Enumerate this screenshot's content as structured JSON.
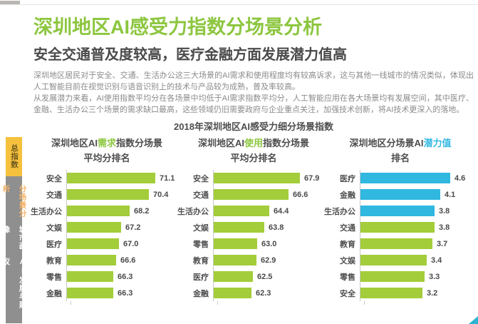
{
  "page": {
    "title": "深圳地区AI感受力指数分场景分析",
    "subtitle": "安全交通普及度较高，医疗金融方面发展潜力值高",
    "para1": "深圳地区居民对于安全、交通、生活办公这三大场景的AI需求和使用程度均有较高诉求，这与其他一线城市的情况类似，体现出人工智能目前在视觉识别与语音识别上的技术与产品较为成熟，普及率较高。",
    "para2": "从发展潜力来看，AI使用指数平均分在各场景中均低于AI需求指数平均分，人工智能应用在各大场景均有发展空间，其中医疗、金融、生活办公三个场景的需求缺口最高，这些领域仍旧需要政府与企业重点关注，加强技术创新，将AI技术更深入的落地。",
    "section_title": "2018年深圳地区AI感受力细分场景指数"
  },
  "sidebar": {
    "tabs": [
      {
        "label": "总指数",
        "style": "yellow"
      },
      {
        "label": "分场景分析",
        "style": "active-orange"
      },
      {
        "label": "城市画像",
        "style": "white"
      },
      {
        "label": "AI发展与建议",
        "style": "white"
      }
    ]
  },
  "colors": {
    "title_green": "#8cc63f",
    "bar_green": "#a3cd3a",
    "bar_blue": "#30b8e1",
    "tab_yellow": "#f5c13d",
    "tab_gray": "#8f8f8f",
    "corner_teal": "#2bb3d4"
  },
  "chart_data": [
    {
      "type": "bar",
      "orientation": "horizontal",
      "title_prefix": "深圳地区AI",
      "title_highlight": "需求",
      "title_suffix": "指数分场景",
      "title_line2": "平均分排名",
      "highlight_color": "#8cc63f",
      "categories": [
        "安全",
        "交通",
        "生活办公",
        "文娱",
        "医疗",
        "教育",
        "零售",
        "金融"
      ],
      "values": [
        71.1,
        70.4,
        68.2,
        67.2,
        67.0,
        66.6,
        66.3,
        66.3
      ],
      "xlim": [
        61,
        73.5
      ],
      "bar_colors": [
        "#a3cd3a",
        "#a3cd3a",
        "#a3cd3a",
        "#a3cd3a",
        "#a3cd3a",
        "#a3cd3a",
        "#a3cd3a",
        "#a3cd3a"
      ]
    },
    {
      "type": "bar",
      "orientation": "horizontal",
      "title_prefix": "深圳地区AI",
      "title_highlight": "使用",
      "title_suffix": "指数分场景",
      "title_line2": "平均分排名",
      "highlight_color": "#8cc63f",
      "categories": [
        "安全",
        "交通",
        "生活办公",
        "文娱",
        "零售",
        "教育",
        "医疗",
        "金融"
      ],
      "values": [
        67.9,
        66.6,
        64.4,
        63.8,
        63.0,
        62.9,
        62.5,
        62.3
      ],
      "xlim": [
        58,
        70.5
      ],
      "bar_colors": [
        "#a3cd3a",
        "#a3cd3a",
        "#a3cd3a",
        "#a3cd3a",
        "#a3cd3a",
        "#a3cd3a",
        "#a3cd3a",
        "#a3cd3a"
      ]
    },
    {
      "type": "bar",
      "orientation": "horizontal",
      "title_prefix": "深圳地区分场景AI",
      "title_highlight": "潜力值",
      "title_suffix": "",
      "title_line2": "排名",
      "highlight_color": "#30b8e1",
      "categories": [
        "医疗",
        "金融",
        "生活办公",
        "交通",
        "教育",
        "文娱",
        "零售",
        "安全"
      ],
      "values": [
        4.6,
        4.1,
        3.8,
        3.8,
        3.7,
        3.4,
        3.3,
        3.2
      ],
      "xlim": [
        0,
        5.6
      ],
      "bar_colors": [
        "#30b8e1",
        "#30b8e1",
        "#30b8e1",
        "#a3cd3a",
        "#a3cd3a",
        "#a3cd3a",
        "#a3cd3a",
        "#a3cd3a"
      ]
    }
  ]
}
